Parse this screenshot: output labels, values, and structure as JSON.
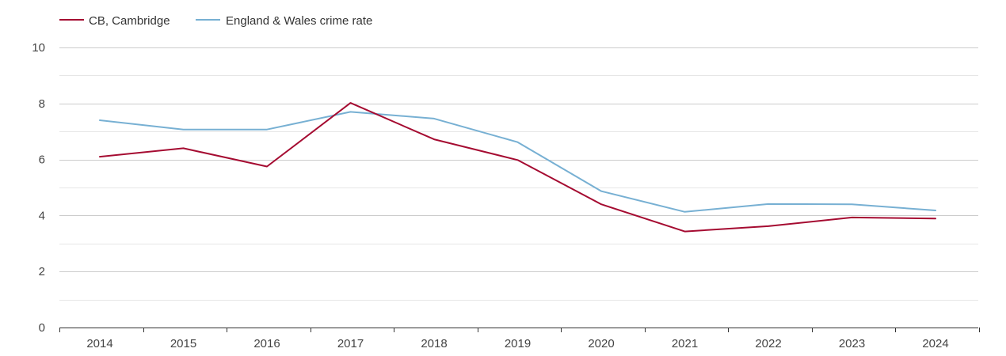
{
  "chart_data": {
    "type": "line",
    "x": [
      "2014",
      "2015",
      "2016",
      "2017",
      "2018",
      "2019",
      "2020",
      "2021",
      "2022",
      "2023",
      "2024"
    ],
    "series": [
      {
        "name": "CB, Cambridge",
        "color": "#a50b31",
        "values": [
          6.1,
          6.4,
          5.75,
          8.02,
          6.72,
          5.98,
          4.4,
          3.43,
          3.62,
          3.93,
          3.89
        ]
      },
      {
        "name": "England & Wales crime rate",
        "color": "#77b0d3",
        "values": [
          7.4,
          7.07,
          7.07,
          7.7,
          7.46,
          6.62,
          4.87,
          4.13,
          4.41,
          4.4,
          4.18
        ]
      }
    ],
    "yticks": [
      "0",
      "2",
      "4",
      "6",
      "8",
      "10"
    ],
    "ylim": [
      0,
      10
    ],
    "grid": true,
    "legend_position": "top-left",
    "title": "",
    "xlabel": "",
    "ylabel": ""
  }
}
